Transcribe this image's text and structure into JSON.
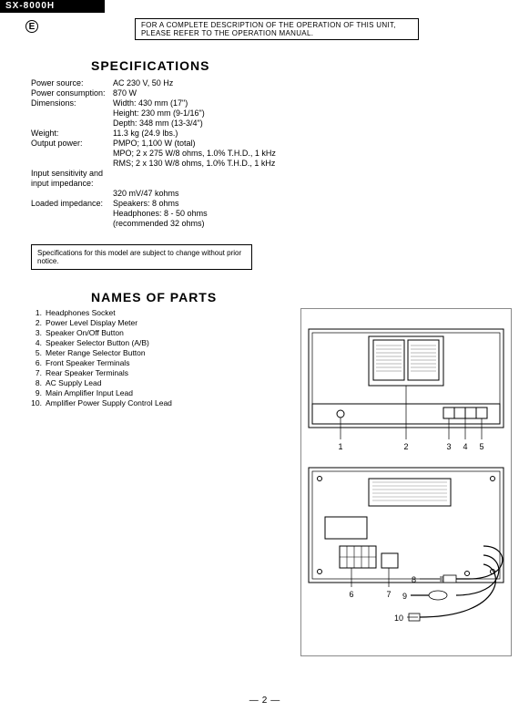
{
  "model": "SX-8000H",
  "marker": "E",
  "description_box": "FOR A COMPLETE DESCRIPTION OF THE OPERATION OF THIS UNIT, PLEASE REFER TO THE OPERATION MANUAL.",
  "specifications": {
    "heading": "SPECIFICATIONS",
    "rows": [
      {
        "label": "Power source:",
        "value": "AC 230 V, 50 Hz"
      },
      {
        "label": "Power consumption:",
        "value": "870 W"
      },
      {
        "label": "Dimensions:",
        "value": "Width: 430 mm (17\")"
      },
      {
        "label": "",
        "value": "Height: 230 mm (9-1/16\")"
      },
      {
        "label": "",
        "value": "Depth: 348 mm (13-3/4\")"
      },
      {
        "label": "Weight:",
        "value": "11.3 kg (24.9 lbs.)"
      },
      {
        "label": "Output power:",
        "value": "PMPO; 1,100 W (total)"
      },
      {
        "label": "",
        "value": "MPO; 2 x 275 W/8 ohms, 1.0% T.H.D., 1 kHz"
      },
      {
        "label": "",
        "value": "RMS; 2 x 130 W/8 ohms, 1.0% T.H.D., 1 kHz"
      },
      {
        "label": "Input sensitivity and input impedance:",
        "value": ""
      },
      {
        "label": "",
        "value": "320 mV/47 kohms"
      },
      {
        "label": "Loaded impedance:",
        "value": "Speakers: 8 ohms"
      },
      {
        "label": "",
        "value": "Headphones: 8 - 50 ohms"
      },
      {
        "label": "",
        "value": "(recommended 32 ohms)"
      }
    ],
    "note": "Specifications for this model are subject to change without prior notice."
  },
  "names_of_parts": {
    "heading": "NAMES OF PARTS",
    "items": [
      "Headphones Socket",
      "Power Level Display Meter",
      "Speaker On/Off Button",
      "Speaker Selector Button (A/B)",
      "Meter Range Selector Button",
      "Front Speaker Terminals",
      "Rear Speaker Terminals",
      "AC Supply Lead",
      "Main Amplifier Input Lead",
      "Amplifier Power Supply Control Lead"
    ]
  },
  "diagram": {
    "front": {
      "callouts": [
        "1",
        "2",
        "3",
        "4",
        "5"
      ],
      "box_stroke": "#000000",
      "fill": "#ffffff"
    },
    "rear": {
      "callouts": [
        "6",
        "7",
        "8",
        "9",
        "10"
      ],
      "box_stroke": "#000000",
      "fill": "#ffffff"
    },
    "colors": {
      "stroke": "#000000",
      "light": "#9a9a9a",
      "hatch": "#888888"
    }
  },
  "page_number": "2"
}
